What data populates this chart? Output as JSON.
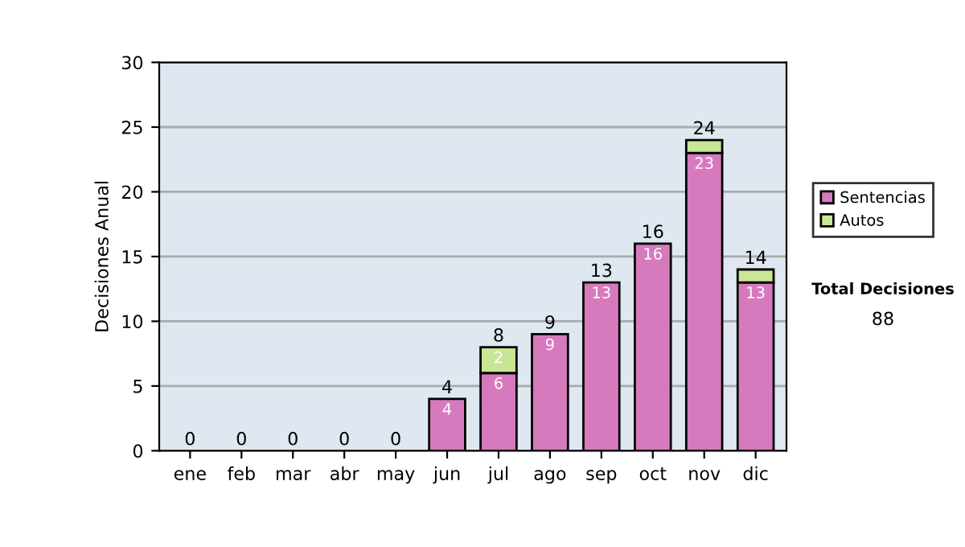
{
  "chart_data": {
    "type": "bar",
    "ylabel": "Decisiones Anual",
    "categories": [
      "ene",
      "feb",
      "mar",
      "abr",
      "may",
      "jun",
      "jul",
      "ago",
      "sep",
      "oct",
      "nov",
      "dic"
    ],
    "stacked": true,
    "series": [
      {
        "name": "Sentencias",
        "color": "#d77abd",
        "values": [
          0,
          0,
          0,
          0,
          0,
          4,
          6,
          9,
          13,
          16,
          23,
          13
        ],
        "value_labels": [
          null,
          null,
          null,
          null,
          null,
          "4",
          "6",
          "9",
          "13",
          "16",
          "23",
          "13"
        ]
      },
      {
        "name": "Autos",
        "color": "#c9e596",
        "values": [
          0,
          0,
          0,
          0,
          0,
          0,
          2,
          0,
          0,
          0,
          1,
          1
        ],
        "value_labels": [
          null,
          null,
          null,
          null,
          null,
          null,
          "2",
          null,
          null,
          null,
          null,
          null
        ]
      }
    ],
    "totals": [
      "0",
      "0",
      "0",
      "0",
      "0",
      "4",
      "8",
      "9",
      "13",
      "16",
      "24",
      "14"
    ],
    "ylim": [
      0,
      30
    ],
    "yticks": [
      0,
      5,
      10,
      15,
      20,
      25,
      30
    ],
    "grid": "y",
    "legend": "right",
    "annotations": [
      "Total Decisiones",
      "88"
    ]
  }
}
